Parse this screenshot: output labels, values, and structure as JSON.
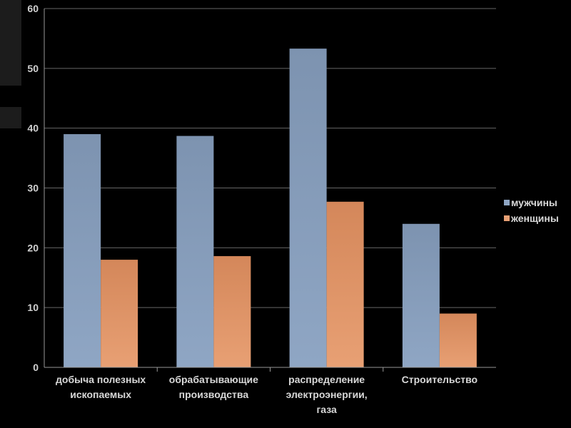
{
  "chart_data": {
    "type": "bar",
    "categories": [
      [
        "добыча полезных",
        "ископаемых"
      ],
      [
        "обрабатывающие",
        "производства"
      ],
      [
        "распределение",
        "электроэнергии,",
        "газа"
      ],
      [
        "Строительство"
      ]
    ],
    "series": [
      {
        "name": "мужчины",
        "values": [
          39,
          38.7,
          53.3,
          24
        ]
      },
      {
        "name": "женщины",
        "values": [
          18,
          18.6,
          27.7,
          9
        ]
      }
    ],
    "ylim": [
      0,
      60
    ],
    "yticks": [
      0,
      10,
      20,
      30,
      40,
      50,
      60
    ],
    "grid": true,
    "legend_position": "right",
    "colors": {
      "series": [
        "#8fa6c4",
        "#e8a074"
      ],
      "series_top": [
        "#7d93b0",
        "#d4875a"
      ],
      "grid": "#666666",
      "axis": "#999999"
    }
  }
}
